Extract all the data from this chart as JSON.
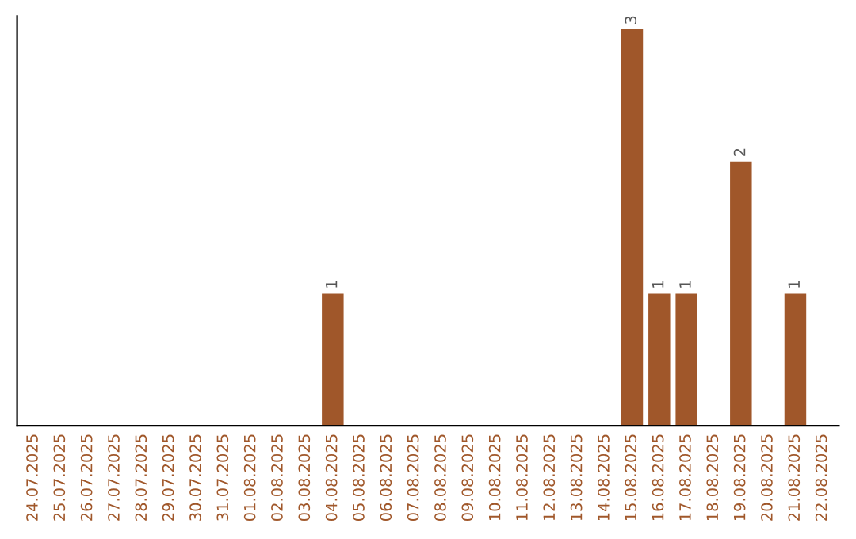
{
  "chart_data": {
    "type": "bar",
    "categories": [
      "24.07.2025",
      "25.07.2025",
      "26.07.2025",
      "27.07.2025",
      "28.07.2025",
      "29.07.2025",
      "30.07.2025",
      "31.07.2025",
      "01.08.2025",
      "02.08.2025",
      "03.08.2025",
      "04.08.2025",
      "05.08.2025",
      "06.08.2025",
      "07.08.2025",
      "08.08.2025",
      "09.08.2025",
      "10.08.2025",
      "11.08.2025",
      "12.08.2025",
      "13.08.2025",
      "14.08.2025",
      "15.08.2025",
      "16.08.2025",
      "17.08.2025",
      "18.08.2025",
      "19.08.2025",
      "20.08.2025",
      "21.08.2025",
      "22.08.2025"
    ],
    "values": [
      0,
      0,
      0,
      0,
      0,
      0,
      0,
      0,
      0,
      0,
      0,
      1,
      0,
      0,
      0,
      0,
      0,
      0,
      0,
      0,
      0,
      0,
      3,
      1,
      1,
      0,
      2,
      0,
      1,
      0
    ],
    "value_labels": [
      null,
      null,
      null,
      null,
      null,
      null,
      null,
      null,
      null,
      null,
      null,
      "1",
      null,
      null,
      null,
      null,
      null,
      null,
      null,
      null,
      null,
      null,
      "3",
      "1",
      "1",
      null,
      "2",
      null,
      "1",
      null
    ],
    "color": "#a0572a",
    "ylim": [
      0,
      3.1
    ],
    "tick_labels": "x",
    "grid": false,
    "legend": false
  }
}
